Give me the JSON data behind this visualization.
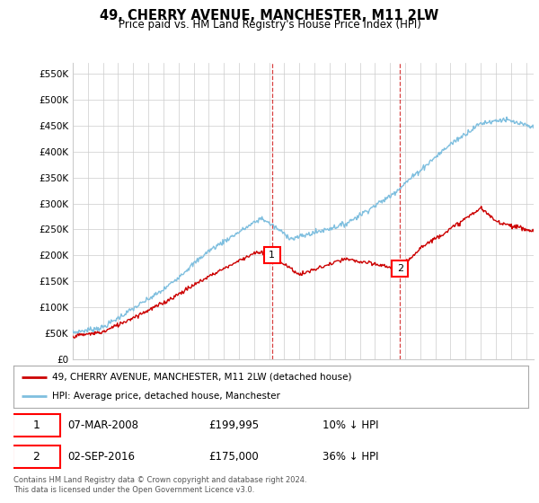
{
  "title": "49, CHERRY AVENUE, MANCHESTER, M11 2LW",
  "subtitle": "Price paid vs. HM Land Registry's House Price Index (HPI)",
  "ylabel_ticks": [
    "£0",
    "£50K",
    "£100K",
    "£150K",
    "£200K",
    "£250K",
    "£300K",
    "£350K",
    "£400K",
    "£450K",
    "£500K",
    "£550K"
  ],
  "ytick_values": [
    0,
    50000,
    100000,
    150000,
    200000,
    250000,
    300000,
    350000,
    400000,
    450000,
    500000,
    550000
  ],
  "ylim": [
    0,
    570000
  ],
  "sale1_date": 2008.17,
  "sale1_price": 199995,
  "sale1_label": "1",
  "sale2_date": 2016.67,
  "sale2_price": 175000,
  "sale2_label": "2",
  "hpi_color": "#7fbfdf",
  "price_color": "#cc0000",
  "vline_color": "#cc0000",
  "background_color": "#ffffff",
  "grid_color": "#cccccc",
  "legend_entry1": "49, CHERRY AVENUE, MANCHESTER, M11 2LW (detached house)",
  "legend_entry2": "HPI: Average price, detached house, Manchester",
  "table_row1": [
    "1",
    "07-MAR-2008",
    "£199,995",
    "10% ↓ HPI"
  ],
  "table_row2": [
    "2",
    "02-SEP-2016",
    "£175,000",
    "36% ↓ HPI"
  ],
  "footnote": "Contains HM Land Registry data © Crown copyright and database right 2024.\nThis data is licensed under the Open Government Licence v3.0.",
  "xmin": 1995,
  "xmax": 2025.5
}
